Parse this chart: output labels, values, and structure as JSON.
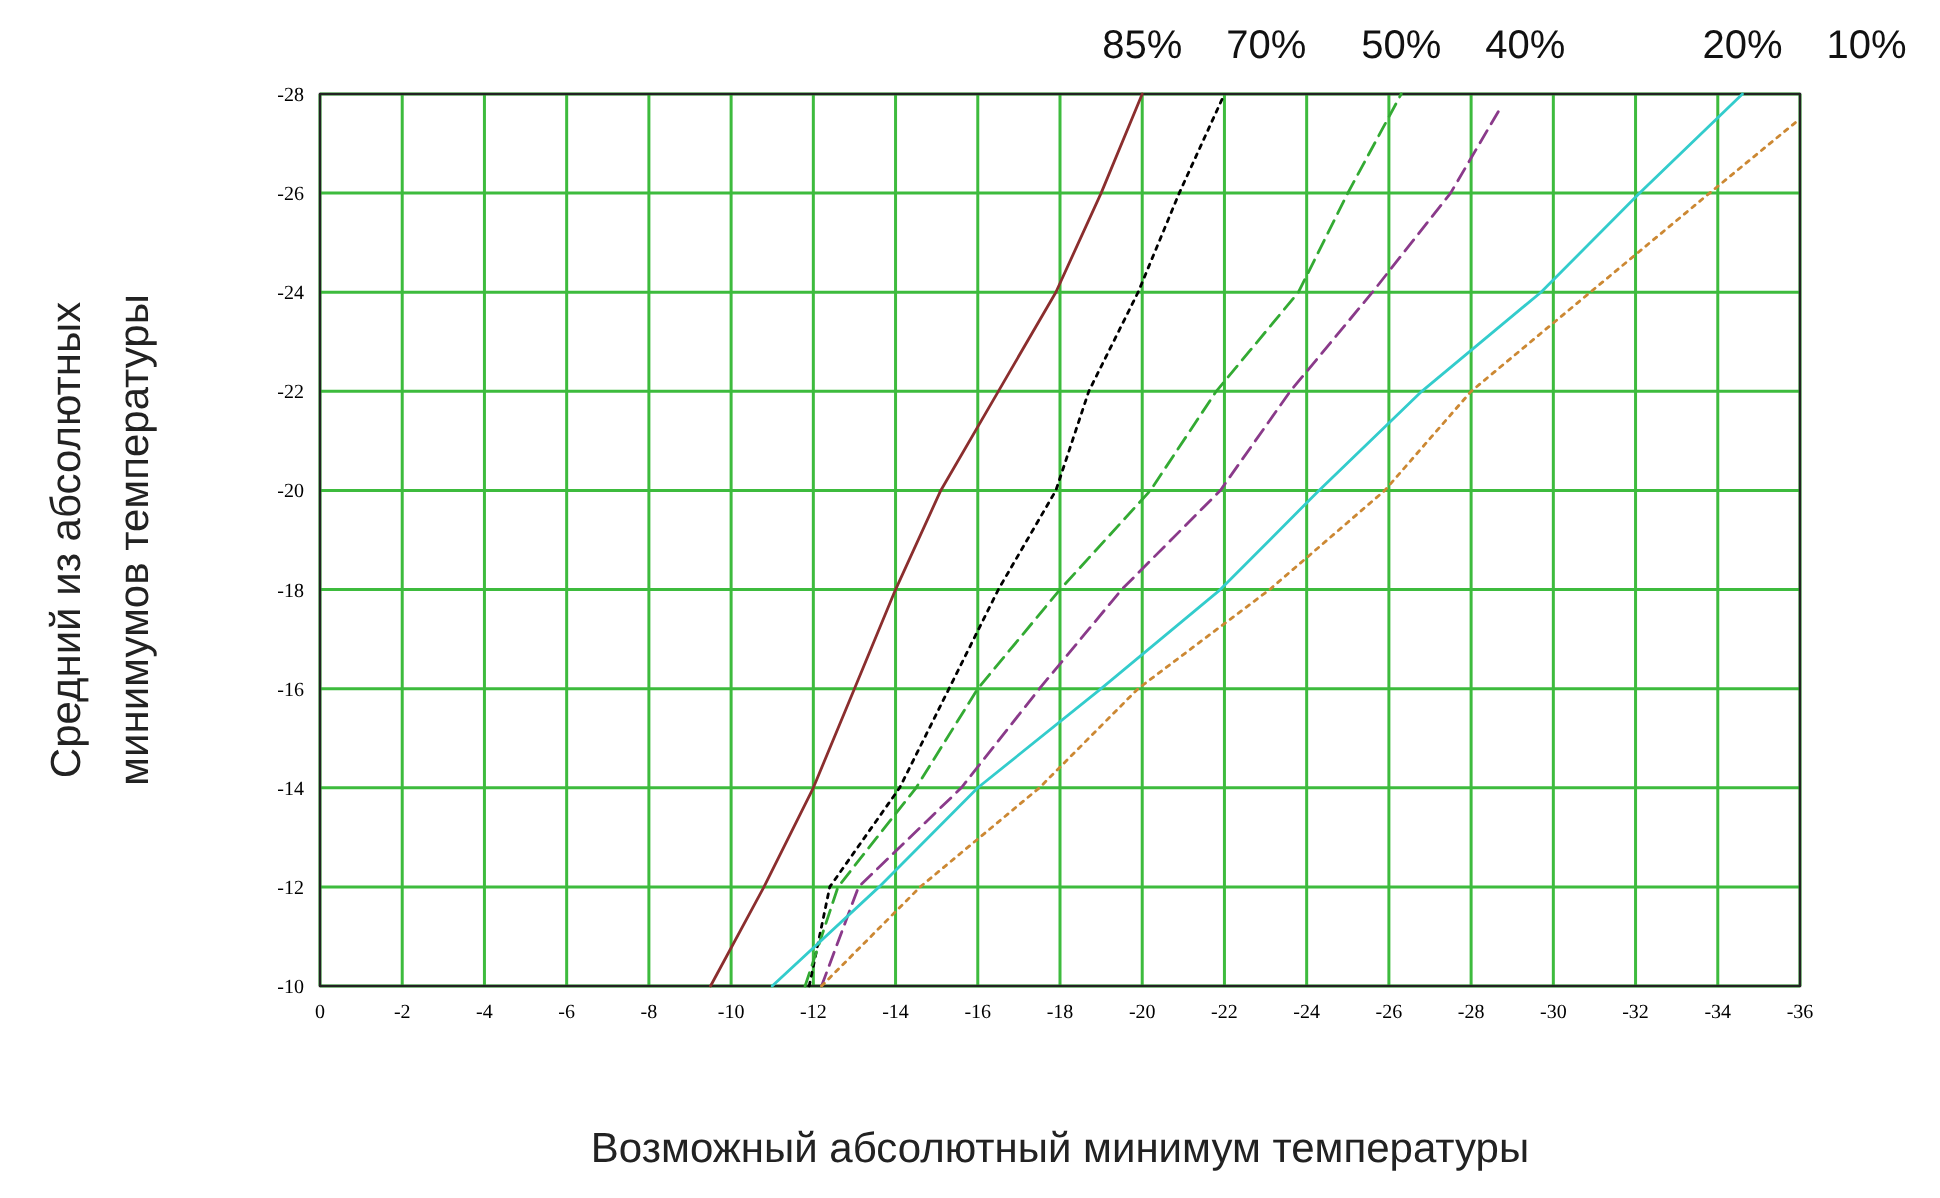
{
  "chart_data": {
    "type": "line",
    "xlabel": "Возможный абсолютный минимум температуры",
    "ylabel": "Средний из абсолютных\nминимумов температуры",
    "xlim": [
      0,
      -36
    ],
    "xticks": [
      0,
      -2,
      -4,
      -6,
      -8,
      -10,
      -12,
      -14,
      -16,
      -18,
      -20,
      -22,
      -24,
      -26,
      -28,
      -30,
      -32,
      -34,
      -36
    ],
    "ylim": [
      -10,
      -28
    ],
    "yticks": [
      -10,
      -12,
      -14,
      -16,
      -18,
      -20,
      -22,
      -24,
      -26,
      -28
    ],
    "grid": true,
    "marker": "none",
    "series": [
      {
        "name": "85%",
        "color": "#8b2e2e",
        "line_style": "solid",
        "x": [
          -9.5,
          -10.8,
          -12,
          -13,
          -14,
          -15.1,
          -16.5,
          -17.9,
          -19,
          -20
        ],
        "values": [
          -10,
          -12,
          -14,
          -16,
          -18,
          -20,
          -22,
          -24,
          -26,
          -28
        ]
      },
      {
        "name": "70%",
        "color": "#000000",
        "line_style": "dotted",
        "x": [
          -11.9,
          -12.4,
          -14.1,
          -15.3,
          -16.5,
          -17.9,
          -18.7,
          -19.9,
          -20.9,
          -22
        ],
        "values": [
          -10,
          -12,
          -14,
          -16,
          -18,
          -20,
          -22,
          -24,
          -26,
          -28
        ]
      },
      {
        "name": "50%",
        "color": "#33aa33",
        "line_style": "dashed",
        "x": [
          -11.8,
          -12.6,
          -14.5,
          -16,
          -18,
          -20.2,
          -21.8,
          -23.8,
          -25,
          -26.3
        ],
        "values": [
          -10,
          -12,
          -14,
          -16,
          -18,
          -20,
          -22,
          -24,
          -26,
          -28
        ]
      },
      {
        "name": "40%",
        "color": "#8a3a8a",
        "line_style": "dashed",
        "x": [
          -12.2,
          -13.1,
          -15.6,
          -17.5,
          -19.5,
          -21.9,
          -23.6,
          -25.6,
          -27.5,
          -28.7
        ],
        "values": [
          -10,
          -12,
          -14,
          -16,
          -18,
          -20,
          -22,
          -24,
          -26,
          -27.7
        ]
      },
      {
        "name": "20%",
        "color": "#33cccc",
        "line_style": "solid",
        "x": [
          -11,
          -13.6,
          -16,
          -19,
          -21.9,
          -24.3,
          -26.8,
          -29.7,
          -32.1,
          -34.6
        ],
        "values": [
          -10,
          -12,
          -14,
          -16,
          -18,
          -20,
          -22,
          -24,
          -26,
          -28
        ]
      },
      {
        "name": "10%",
        "color": "#cc8833",
        "line_style": "dotted",
        "x": [
          -12.2,
          -14.6,
          -17.5,
          -19.9,
          -23.1,
          -25.9,
          -28,
          -30.9,
          -33.8,
          -36
        ],
        "values": [
          -10,
          -12,
          -14,
          -16,
          -18,
          -20,
          -22,
          -24,
          -26,
          -27.5
        ]
      }
    ]
  }
}
